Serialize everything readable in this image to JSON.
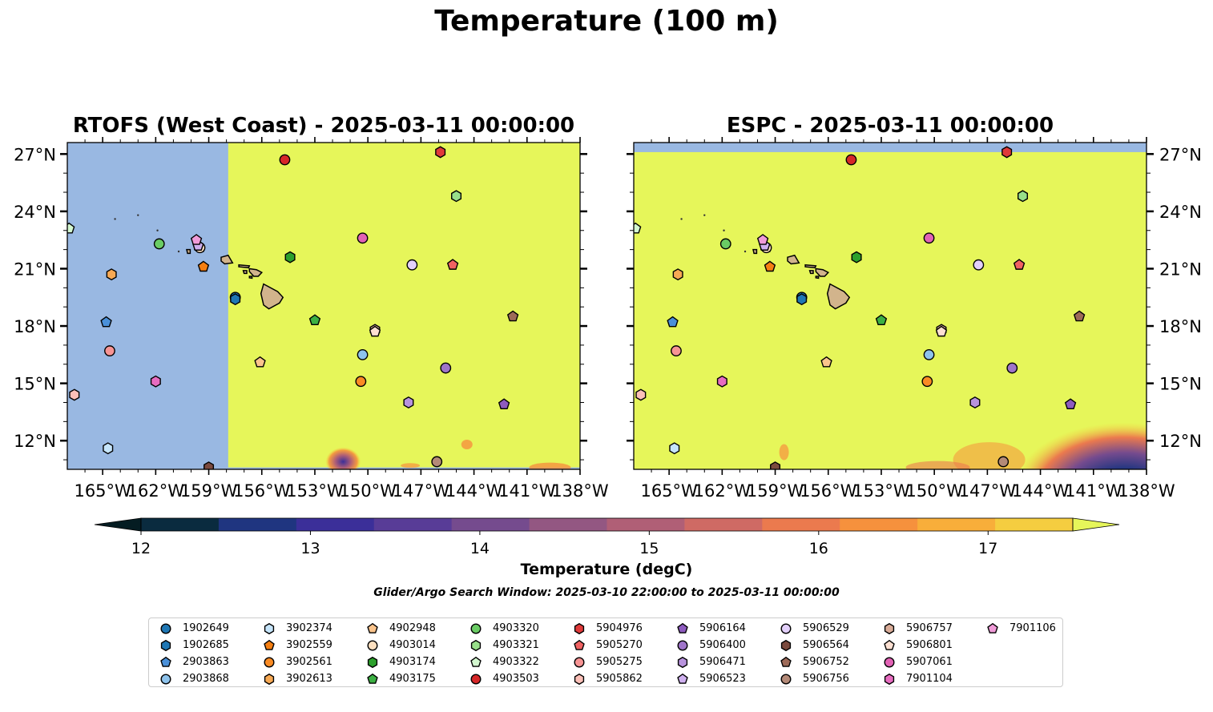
{
  "suptitle": "Temperature (100 m)",
  "window_text": "Glider/Argo Search Window: 2025-03-10 22:00:00 to 2025-03-11 00:00:00",
  "chart_data": [
    {
      "type": "heatmap",
      "title": "RTOFS (West Coast) - 2025-03-11 00:00:00",
      "xlim": [
        -167,
        -138
      ],
      "ylim": [
        10.5,
        27.6
      ],
      "xticks": [
        "165°W",
        "162°W",
        "159°W",
        "156°W",
        "153°W",
        "150°W",
        "147°W",
        "144°W",
        "141°W",
        "138°W"
      ],
      "yticks": [
        "27°N",
        "24°N",
        "21°N",
        "18°N",
        "15°N",
        "12°N"
      ],
      "no_data_west_of": -157.9,
      "field_color": "#e6f65a"
    },
    {
      "type": "heatmap",
      "title": "ESPC - 2025-03-11 00:00:00",
      "xlim": [
        -167,
        -138
      ],
      "ylim": [
        10.5,
        27.6
      ],
      "xticks": [
        "165°W",
        "162°W",
        "159°W",
        "156°W",
        "153°W",
        "150°W",
        "147°W",
        "144°W",
        "141°W",
        "138°W"
      ],
      "yticks": [
        "27°N",
        "24°N",
        "21°N",
        "18°N",
        "15°N",
        "12°N"
      ],
      "no_data_north_of": 27.1,
      "field_color": "#e6f65a"
    }
  ],
  "colorbar": {
    "label": "Temperature (degC)",
    "min": 12,
    "max": 17.5,
    "ticks": [
      "12",
      "13",
      "14",
      "15",
      "16",
      "17"
    ],
    "colors": [
      "#0a2b3f",
      "#1f3580",
      "#3b2f99",
      "#583c97",
      "#754b8e",
      "#935782",
      "#b05f76",
      "#cf6a64",
      "#eb7a4e",
      "#f6913d",
      "#f8ae3a",
      "#f5cd40"
    ],
    "extend_low": "#041c22",
    "extend_high": "#e6f65a"
  },
  "platforms": [
    {
      "id": "1902649",
      "marker": "circle",
      "color": "#1f77b4",
      "lon": -157.5,
      "lat": 19.5
    },
    {
      "id": "1902685",
      "marker": "hexagon",
      "color": "#1f77b4",
      "lon": -157.5,
      "lat": 19.4
    },
    {
      "id": "2903863",
      "marker": "pentagon",
      "color": "#4a90d9",
      "lon": -164.8,
      "lat": 18.2
    },
    {
      "id": "2903868",
      "marker": "circle",
      "color": "#8ec3ec",
      "lon": -150.3,
      "lat": 16.5
    },
    {
      "id": "3902374",
      "marker": "hexagon",
      "color": "#c6e5fb",
      "lon": -164.7,
      "lat": 11.6
    },
    {
      "id": "3902559",
      "marker": "pentagon",
      "color": "#f57f12",
      "lon": -159.3,
      "lat": 21.1
    },
    {
      "id": "3902561",
      "marker": "circle",
      "color": "#fa8b24",
      "lon": -150.4,
      "lat": 15.1
    },
    {
      "id": "3902613",
      "marker": "hexagon",
      "color": "#f7a954",
      "lon": -164.5,
      "lat": 20.7
    },
    {
      "id": "4902948",
      "marker": "pentagon",
      "color": "#fbc48c",
      "lon": -156.1,
      "lat": 16.1
    },
    {
      "id": "4903014",
      "marker": "circle",
      "color": "#fde0c0",
      "lon": -159.5,
      "lat": 22.1
    },
    {
      "id": "4903174",
      "marker": "hexagon",
      "color": "#2ca02c",
      "lon": -154.4,
      "lat": 21.6
    },
    {
      "id": "4903175",
      "marker": "pentagon",
      "color": "#3cb043",
      "lon": -153.0,
      "lat": 18.3
    },
    {
      "id": "4903320",
      "marker": "circle",
      "color": "#6acc64",
      "lon": -161.8,
      "lat": 22.3
    },
    {
      "id": "4903321",
      "marker": "hexagon",
      "color": "#98df8a",
      "lon": -145.0,
      "lat": 24.8
    },
    {
      "id": "4903322",
      "marker": "pentagon",
      "color": "#d4f8d0",
      "lon": -166.9,
      "lat": 23.1
    },
    {
      "id": "4903503",
      "marker": "circle",
      "color": "#d62728",
      "lon": -154.7,
      "lat": 26.7
    },
    {
      "id": "5904976",
      "marker": "hexagon",
      "color": "#e03a3a",
      "lon": -145.9,
      "lat": 27.1
    },
    {
      "id": "5905270",
      "marker": "pentagon",
      "color": "#f06262",
      "lon": -145.2,
      "lat": 21.2
    },
    {
      "id": "5905275",
      "marker": "circle",
      "color": "#f79494",
      "lon": -164.6,
      "lat": 16.7
    },
    {
      "id": "5905862",
      "marker": "hexagon",
      "color": "#fcc0b8",
      "lon": -166.6,
      "lat": 14.4
    },
    {
      "id": "5906164",
      "marker": "pentagon",
      "color": "#8e5bbf",
      "lon": -142.3,
      "lat": 13.9
    },
    {
      "id": "5906400",
      "marker": "circle",
      "color": "#9f74c9",
      "lon": -145.6,
      "lat": 15.8
    },
    {
      "id": "5906471",
      "marker": "hexagon",
      "color": "#b893dd",
      "lon": -147.7,
      "lat": 14.0
    },
    {
      "id": "5906523",
      "marker": "pentagon",
      "color": "#cfb0ef",
      "lon": -159.6,
      "lat": 22.2
    },
    {
      "id": "5906529",
      "marker": "circle",
      "color": "#e3d0fb",
      "lon": -147.5,
      "lat": 21.2
    },
    {
      "id": "5906564",
      "marker": "hexagon",
      "color": "#7b4a3e",
      "lon": -159.0,
      "lat": 10.6
    },
    {
      "id": "5906752",
      "marker": "pentagon",
      "color": "#9d6a58",
      "lon": -141.8,
      "lat": 18.5
    },
    {
      "id": "5906756",
      "marker": "circle",
      "color": "#b48a78",
      "lon": -146.1,
      "lat": 10.9
    },
    {
      "id": "5906757",
      "marker": "hexagon",
      "color": "#d9ac98",
      "lon": -149.6,
      "lat": 17.8
    },
    {
      "id": "5906801",
      "marker": "pentagon",
      "color": "#fde0d2",
      "lon": -149.6,
      "lat": 17.7
    },
    {
      "id": "5907061",
      "marker": "circle",
      "color": "#e262b5",
      "lon": -150.3,
      "lat": 22.6
    },
    {
      "id": "7901104",
      "marker": "hexagon",
      "color": "#e76cc0",
      "lon": -162.0,
      "lat": 15.1
    },
    {
      "id": "7901106",
      "marker": "pentagon",
      "color": "#f09bd8",
      "lon": -159.7,
      "lat": 22.5
    }
  ]
}
